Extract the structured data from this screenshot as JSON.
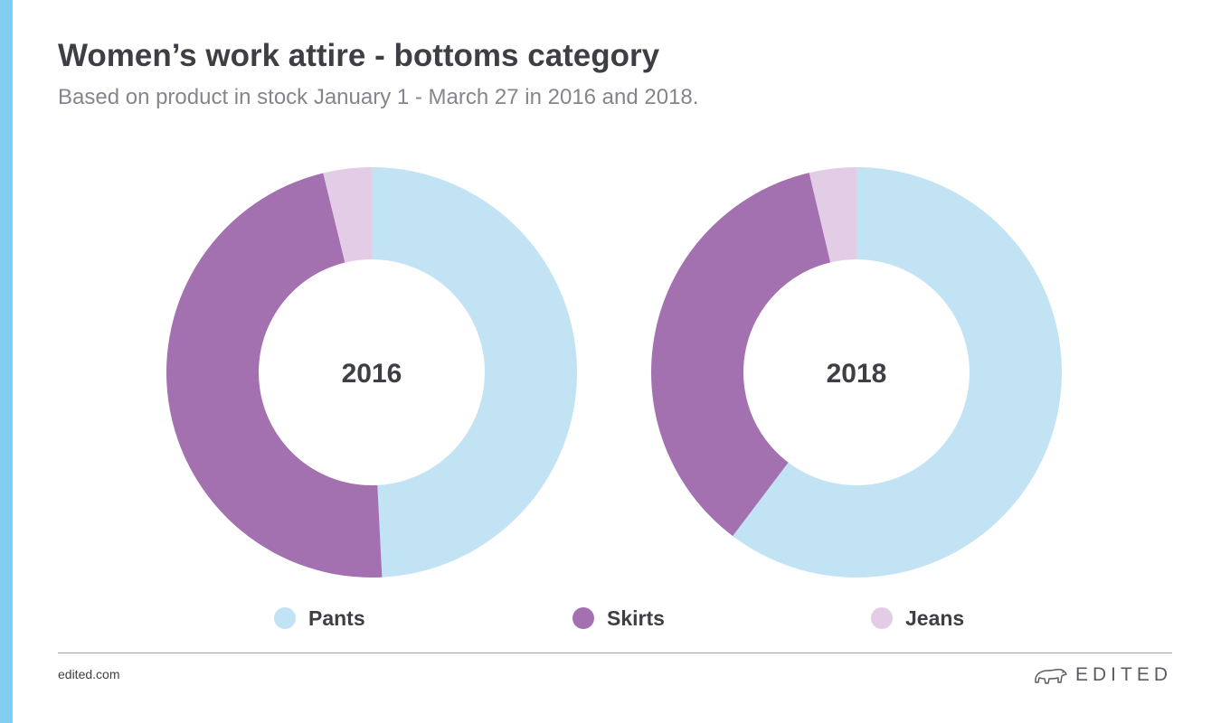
{
  "header": {
    "title": "Women’s work attire - bottoms category",
    "subtitle": "Based on product in stock January 1 - March 27 in 2016 and 2018."
  },
  "chart_data": {
    "type": "pie",
    "categories": [
      "Pants",
      "Skirts",
      "Jeans"
    ],
    "colors": [
      "#c1e3f4",
      "#a471b0",
      "#e3cde6"
    ],
    "donuts": [
      {
        "label": "2016",
        "values": [
          49.2,
          47.0,
          3.8
        ]
      },
      {
        "label": "2018",
        "values": [
          60.3,
          36.0,
          3.7
        ]
      }
    ],
    "legend": "bottom"
  },
  "footer": {
    "site": "edited.com",
    "brand": "EDITED",
    "brand_icon": "polar-bear-icon"
  }
}
